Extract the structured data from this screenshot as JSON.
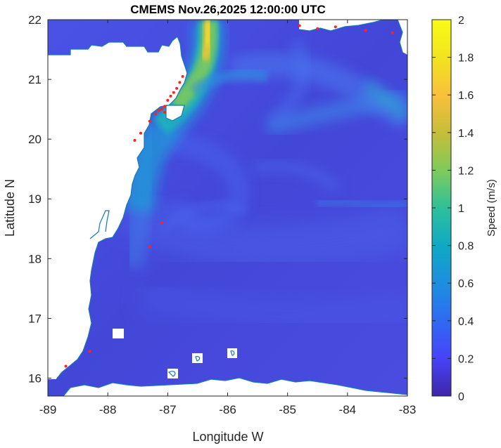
{
  "title": "CMEMS Nov.26,2025 12:00:00 UTC",
  "axes": {
    "xlabel": "Longitude W",
    "ylabel": "Latitude N",
    "xlim": [
      -89,
      -83
    ],
    "ylim": [
      15.7,
      22
    ],
    "xticks": [
      {
        "value": -89,
        "label": "-89"
      },
      {
        "value": -88,
        "label": "-88"
      },
      {
        "value": -87,
        "label": "-87"
      },
      {
        "value": -86,
        "label": "-86"
      },
      {
        "value": -85,
        "label": "-85"
      },
      {
        "value": -84,
        "label": "-84"
      },
      {
        "value": -83,
        "label": "-83"
      }
    ],
    "yticks": [
      {
        "value": 16,
        "label": "16"
      },
      {
        "value": 17,
        "label": "17"
      },
      {
        "value": 18,
        "label": "18"
      },
      {
        "value": 19,
        "label": "19"
      },
      {
        "value": 20,
        "label": "20"
      },
      {
        "value": 21,
        "label": "21"
      },
      {
        "value": 22,
        "label": "22"
      }
    ]
  },
  "colorbar": {
    "label": "Speed (m/s)",
    "range": [
      0,
      2
    ],
    "ticks": [
      {
        "value": 0,
        "label": "0"
      },
      {
        "value": 0.2,
        "label": "0.2"
      },
      {
        "value": 0.4,
        "label": "0.4"
      },
      {
        "value": 0.6,
        "label": "0.6"
      },
      {
        "value": 0.8,
        "label": "0.8"
      },
      {
        "value": 1.0,
        "label": "1"
      },
      {
        "value": 1.2,
        "label": "1.2"
      },
      {
        "value": 1.4,
        "label": "1.4"
      },
      {
        "value": 1.6,
        "label": "1.6"
      },
      {
        "value": 1.8,
        "label": "1.8"
      },
      {
        "value": 2.0,
        "label": "2"
      }
    ],
    "colormap": [
      "#3e26a8",
      "#4743f8",
      "#2f6af3",
      "#1d8fdf",
      "#0fa9c5",
      "#2ec09a",
      "#7fcb5a",
      "#c6bd3a",
      "#f9c03b",
      "#f2e41f",
      "#f9fb15"
    ]
  },
  "colors": {
    "ocean_low": "#4646dc",
    "ocean_mid": "#3a6ee8",
    "current_core": "#f2d82a",
    "land": "#ffffff",
    "coastline": "#1777b8",
    "markers": "#ff2020"
  },
  "chart_data": {
    "type": "heatmap",
    "title": "CMEMS Nov.26,2025 12:00:00 UTC",
    "xlabel": "Longitude W",
    "ylabel": "Latitude N",
    "xlim": [
      -89,
      -83
    ],
    "ylim": [
      15.7,
      22
    ],
    "zlabel": "Speed (m/s)",
    "zlim": [
      0,
      2
    ],
    "features": [
      {
        "name": "current-core",
        "path": [
          [
            -86.2,
            22.0
          ],
          [
            -86.3,
            21.6
          ],
          [
            -86.4,
            21.2
          ],
          [
            -86.7,
            20.8
          ],
          [
            -86.9,
            20.5
          ]
        ],
        "speed": 1.8
      },
      {
        "name": "current-branch",
        "path": [
          [
            -86.9,
            20.5
          ],
          [
            -87.1,
            20.2
          ],
          [
            -87.3,
            19.8
          ],
          [
            -87.4,
            19.4
          ],
          [
            -87.5,
            19.0
          ]
        ],
        "speed": 0.8
      },
      {
        "name": "east-jet",
        "path": [
          [
            -85.5,
            21.3
          ],
          [
            -84.8,
            21.0
          ],
          [
            -84.1,
            20.7
          ],
          [
            -83.5,
            20.4
          ],
          [
            -83.0,
            20.2
          ]
        ],
        "speed": 0.9
      }
    ],
    "red_markers": [
      [
        -86.75,
        21.05
      ],
      [
        -86.8,
        20.95
      ],
      [
        -86.85,
        20.85
      ],
      [
        -86.9,
        20.78
      ],
      [
        -86.95,
        20.72
      ],
      [
        -87.0,
        20.65
      ],
      [
        -87.05,
        20.55
      ],
      [
        -87.1,
        20.5
      ],
      [
        -87.05,
        20.45
      ],
      [
        -87.15,
        20.48
      ],
      [
        -87.2,
        20.42
      ],
      [
        -87.3,
        20.3
      ],
      [
        -87.45,
        20.1
      ],
      [
        -87.55,
        19.98
      ],
      [
        -87.1,
        18.6
      ],
      [
        -87.3,
        18.2
      ],
      [
        -88.3,
        16.45
      ],
      [
        -88.7,
        16.2
      ],
      [
        -84.5,
        21.85
      ],
      [
        -84.2,
        21.88
      ],
      [
        -83.7,
        21.82
      ],
      [
        -83.25,
        21.78
      ],
      [
        -84.8,
        21.9
      ]
    ]
  }
}
